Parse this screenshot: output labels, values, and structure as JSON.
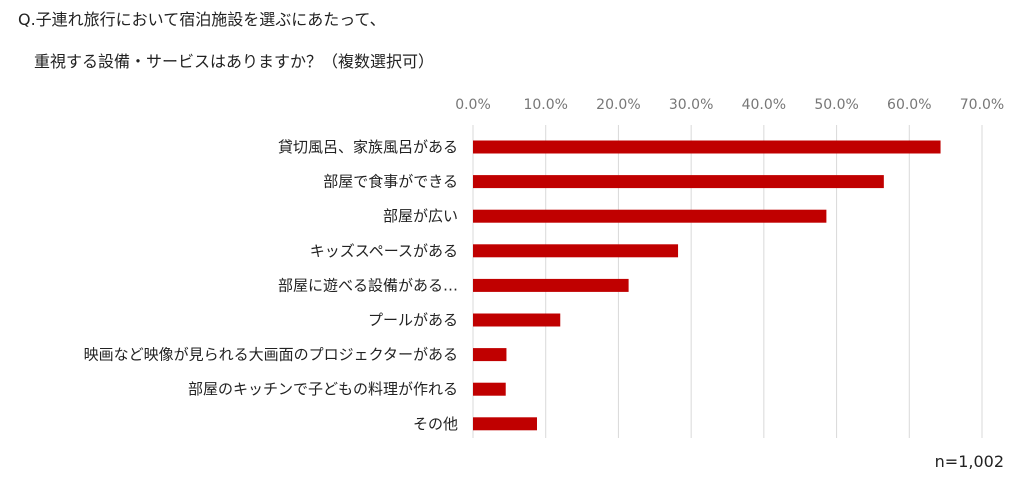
{
  "chart_data": {
    "type": "bar",
    "orientation": "horizontal",
    "title": "Q.子連れ旅行において宿泊施設を選ぶにあたって、",
    "subtitle": "重視する設備・サービスはありますか？（複数選択可）",
    "categories": [
      "貸切風呂、家族風呂がある",
      "部屋で食事ができる",
      "部屋が広い",
      "キッズスペースがある",
      "部屋に遊べる設備がある…",
      "プールがある",
      "映画など映像が見られる大画面のプロジェクターがある",
      "部屋のキッチンで子どもの料理が作れる",
      "その他"
    ],
    "values": [
      64.3,
      56.5,
      48.6,
      28.2,
      21.4,
      12.0,
      4.6,
      4.5,
      8.8
    ],
    "xlim": [
      0,
      70
    ],
    "xticks": [
      "0.0%",
      "10.0%",
      "20.0%",
      "30.0%",
      "40.0%",
      "50.0%",
      "60.0%",
      "70.0%"
    ],
    "bar_color": "#c00000",
    "grid": true,
    "note": "n=1,002"
  }
}
